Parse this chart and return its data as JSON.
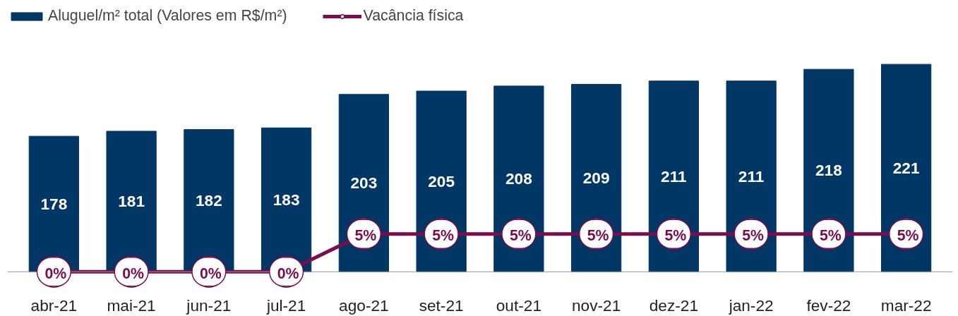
{
  "chart_data": {
    "type": "bar",
    "categories": [
      "abr-21",
      "mai-21",
      "jun-21",
      "jul-21",
      "ago-21",
      "set-21",
      "out-21",
      "nov-21",
      "dez-21",
      "jan-22",
      "fev-22",
      "mar-22"
    ],
    "series": [
      {
        "name": "Aluguel/m² total (Valores em R$/m²)",
        "color": "#003764",
        "values": [
          178,
          181,
          182,
          183,
          203,
          205,
          208,
          209,
          211,
          211,
          218,
          221
        ]
      },
      {
        "name": "Vacância física",
        "type": "line",
        "axis": "y2",
        "color": "#7b0c4d",
        "marker": "circle",
        "values": [
          0,
          0,
          0,
          0,
          5,
          5,
          5,
          5,
          5,
          5,
          5,
          5
        ],
        "value_labels": [
          "0%",
          "0%",
          "0%",
          "0%",
          "5%",
          "5%",
          "5%",
          "5%",
          "5%",
          "5%",
          "5%",
          "5%"
        ]
      }
    ],
    "data_labels": true,
    "ylim": [
      97,
      255
    ],
    "y2lim": [
      0,
      35
    ],
    "tick_labels": "x",
    "grid": false,
    "legend": "top left"
  }
}
